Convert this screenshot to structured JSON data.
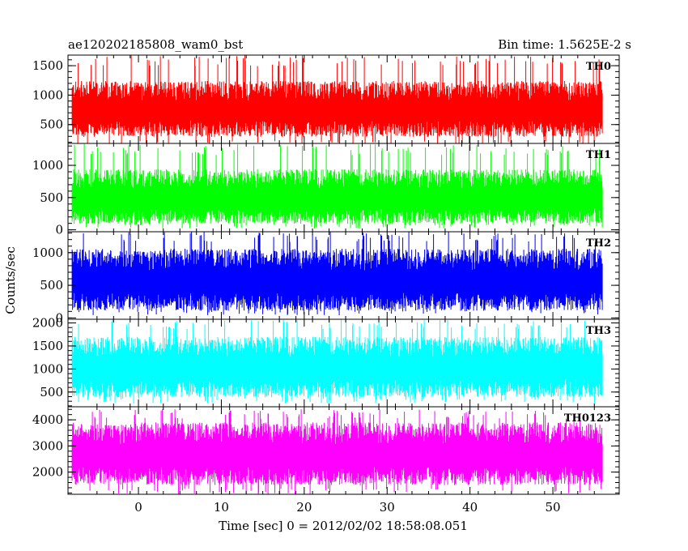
{
  "header": {
    "left": "ae120202185808_wam0_bst",
    "right": "Bin time: 1.5625E-2 s"
  },
  "chart_data": {
    "type": "line",
    "title": "ae120202185808_wam0_bst",
    "bin_time": "Bin time: 1.5625E-2 s",
    "xlabel": "Time [sec] 0 = 2012/02/02 18:58:08.051",
    "ylabel": "Counts/sec",
    "xlim": [
      -8.5,
      58
    ],
    "data_x_range": [
      -8,
      56
    ],
    "x_ticks": [
      0,
      10,
      20,
      30,
      40,
      50
    ],
    "x_tick_labels": [
      "0",
      "10",
      "20",
      "30",
      "40",
      "50"
    ],
    "grid": false,
    "panels": [
      {
        "name": "TH0",
        "color": "#ff0000",
        "ylim": [
          180,
          1680
        ],
        "y_ticks": [
          500,
          1000,
          1500
        ],
        "y_tick_labels": [
          "500",
          "1000",
          "1500"
        ],
        "baseline": 720,
        "noise_low": 430,
        "noise_high": 520,
        "peak_max": 1680,
        "floor_min": 130
      },
      {
        "name": "TH1",
        "color": "#00ff00",
        "ylim": [
          -30,
          1340
        ],
        "y_ticks": [
          0,
          500,
          1000
        ],
        "y_tick_labels": [
          "0",
          "500",
          "1000"
        ],
        "baseline": 470,
        "noise_low": 380,
        "noise_high": 470,
        "peak_max": 1330,
        "floor_min": 20
      },
      {
        "name": "TH2",
        "color": "#0000ff",
        "ylim": [
          -20,
          1320
        ],
        "y_ticks": [
          0,
          500,
          1000
        ],
        "y_tick_labels": [
          "0",
          "500",
          "1000"
        ],
        "baseline": 540,
        "noise_low": 430,
        "noise_high": 520,
        "peak_max": 1320,
        "floor_min": 40
      },
      {
        "name": "TH3",
        "color": "#00ffff",
        "ylim": [
          180,
          2080
        ],
        "y_ticks": [
          500,
          1000,
          1500,
          2000
        ],
        "y_tick_labels": [
          "500",
          "1000",
          "1500",
          "2000"
        ],
        "baseline": 1000,
        "noise_low": 620,
        "noise_high": 700,
        "peak_max": 2080,
        "floor_min": 250
      },
      {
        "name": "TH0123",
        "color": "#ff00ff",
        "ylim": [
          1150,
          4500
        ],
        "y_ticks": [
          2000,
          3000,
          4000
        ],
        "y_tick_labels": [
          "2000",
          "3000",
          "4000"
        ],
        "baseline": 2600,
        "noise_low": 1100,
        "noise_high": 1300,
        "peak_max": 4400,
        "floor_min": 1150
      }
    ]
  }
}
